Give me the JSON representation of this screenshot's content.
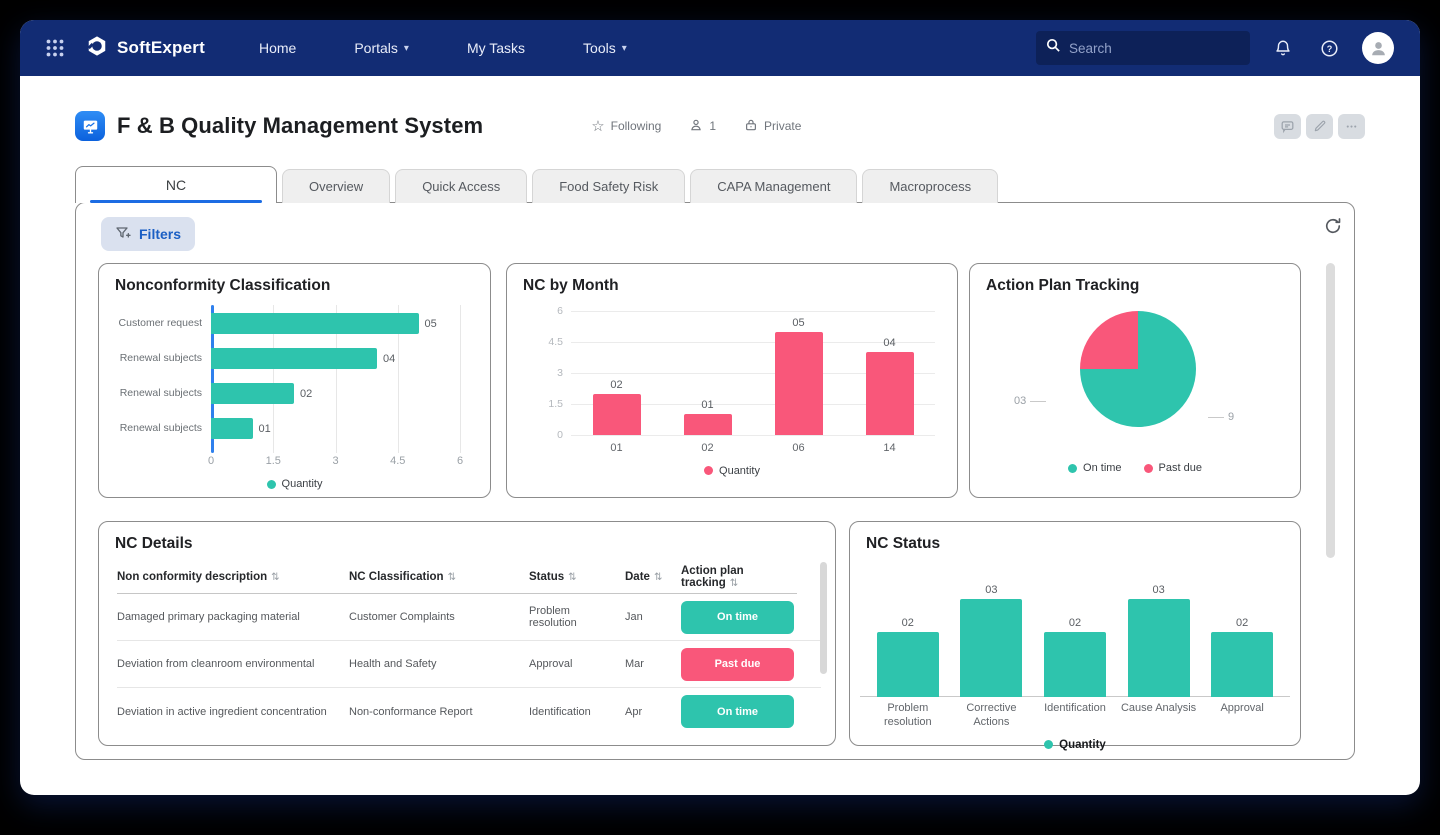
{
  "navbar": {
    "brand": "SoftExpert",
    "items": [
      {
        "label": "Home",
        "dropdown": false
      },
      {
        "label": "Portals",
        "dropdown": true
      },
      {
        "label": "My Tasks",
        "dropdown": false
      },
      {
        "label": "Tools",
        "dropdown": true
      }
    ],
    "search": {
      "placeholder": "Search"
    }
  },
  "header": {
    "title": "F & B Quality Management System",
    "following": "Following",
    "followers": "1",
    "privacy": "Private"
  },
  "tabs": [
    {
      "label": "NC",
      "active": true
    },
    {
      "label": "Overview",
      "active": false
    },
    {
      "label": "Quick Access",
      "active": false
    },
    {
      "label": "Food Safety Risk",
      "active": false
    },
    {
      "label": "CAPA Management",
      "active": false
    },
    {
      "label": "Macroprocess",
      "active": false
    }
  ],
  "toolbar": {
    "filters": "Filters"
  },
  "colors": {
    "navbar": "#122C74",
    "teal": "#2EC4AD",
    "pink": "#F9577A",
    "tab_underline": "#1C6CE3",
    "axis_blue": "#2F80ED"
  },
  "chart_data": [
    {
      "type": "bar",
      "orientation": "horizontal",
      "title": "Nonconformity Classification",
      "categories": [
        "Customer request",
        "Renewal subjects",
        "Renewal subjects",
        "Renewal subjects"
      ],
      "values": [
        5,
        4,
        2,
        1
      ],
      "value_labels": [
        "05",
        "04",
        "02",
        "01"
      ],
      "xlabel": "",
      "ylabel": "",
      "xlim": [
        0,
        6
      ],
      "xticks": [
        0,
        1.5,
        3,
        4.5,
        6
      ],
      "xtick_labels": [
        "0",
        "1.5",
        "3",
        "4.5",
        "6"
      ],
      "grid": true,
      "legend_position": "bottom",
      "legend": [
        {
          "label": "Quantity",
          "color": "#2EC4AD"
        }
      ]
    },
    {
      "type": "bar",
      "orientation": "vertical",
      "title": "NC by Month",
      "categories": [
        "01",
        "02",
        "06",
        "14"
      ],
      "values": [
        2,
        1,
        5,
        4
      ],
      "value_labels": [
        "02",
        "01",
        "05",
        "04"
      ],
      "xlabel": "",
      "ylabel": "",
      "ylim": [
        0,
        6
      ],
      "yticks": [
        0,
        1.5,
        3,
        4.5,
        6
      ],
      "ytick_labels": [
        "0",
        "1.5",
        "3",
        "4.5",
        "6"
      ],
      "grid": true,
      "legend_position": "bottom",
      "legend": [
        {
          "label": "Quantity",
          "color": "#F9577A"
        }
      ]
    },
    {
      "type": "pie",
      "title": "Action Plan Tracking",
      "slices": [
        {
          "label": "On time",
          "value": 9,
          "display": "9",
          "color": "#2EC4AD"
        },
        {
          "label": "Past due",
          "value": 3,
          "display": "03",
          "color": "#F9577A"
        }
      ],
      "legend_position": "bottom",
      "legend": [
        {
          "label": "On time",
          "color": "#2EC4AD"
        },
        {
          "label": "Past due",
          "color": "#F9577A"
        }
      ]
    },
    {
      "type": "bar",
      "orientation": "vertical",
      "title": "NC Status",
      "categories": [
        "Problem resolution",
        "Corrective Actions",
        "Identification",
        "Cause Analysis",
        "Approval"
      ],
      "values": [
        2,
        3,
        2,
        3,
        2
      ],
      "value_labels": [
        "02",
        "03",
        "02",
        "03",
        "02"
      ],
      "xlabel": "",
      "ylabel": "",
      "ylim": [
        0,
        3.5
      ],
      "grid": false,
      "legend_position": "bottom",
      "legend": [
        {
          "label": "Quantity",
          "color": "#2EC4AD"
        }
      ]
    }
  ],
  "table": {
    "title": "NC Details",
    "columns": [
      "Non conformity description",
      "NC Classification",
      "Status",
      "Date",
      "Action plan tracking"
    ],
    "rows": [
      {
        "description": "Damaged primary packaging material",
        "classification": "Customer Complaints",
        "status": "Problem resolution",
        "date": "Jan",
        "tracking": "On time",
        "tracking_state": "on-time"
      },
      {
        "description": "Deviation from cleanroom environmental",
        "classification": "Health and Safety",
        "status": "Approval",
        "date": "Mar",
        "tracking": "Past due",
        "tracking_state": "past-due"
      },
      {
        "description": "Deviation in active ingredient concentration",
        "classification": "Non-conformance Report",
        "status": "Identification",
        "date": "Apr",
        "tracking": "On time",
        "tracking_state": "on-time"
      }
    ]
  }
}
